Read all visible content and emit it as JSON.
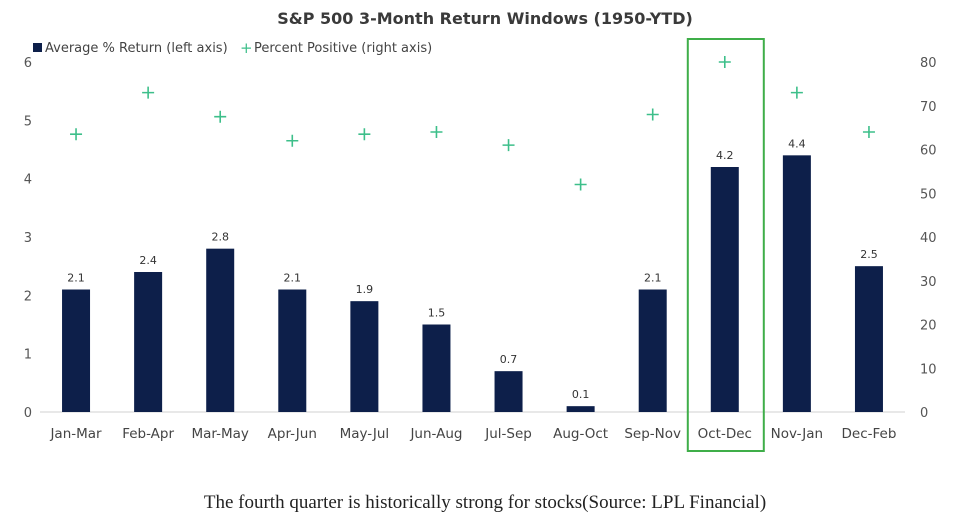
{
  "chart_data": {
    "type": "bar",
    "title": "S&P 500 3-Month Return Windows (1950-YTD)",
    "categories": [
      "Jan-Mar",
      "Feb-Apr",
      "Mar-May",
      "Apr-Jun",
      "May-Jul",
      "Jun-Aug",
      "Jul-Sep",
      "Aug-Oct",
      "Sep-Nov",
      "Oct-Dec",
      "Nov-Jan",
      "Dec-Feb"
    ],
    "series": [
      {
        "name": "Average % Return (left axis)",
        "type": "bar",
        "axis": "left",
        "color": "#0d1f4a",
        "values": [
          2.1,
          2.4,
          2.8,
          2.1,
          1.9,
          1.5,
          0.7,
          0.1,
          2.1,
          4.2,
          4.4,
          2.5
        ],
        "labels": [
          "2.1",
          "2.4",
          "2.8",
          "2.1",
          "1.9",
          "1.5",
          "0.7",
          "0.1",
          "2.1",
          "4.2",
          "4.4",
          "2.5"
        ]
      },
      {
        "name": "Percent Positive (right axis)",
        "type": "scatter",
        "marker": "+",
        "axis": "right",
        "color": "#3dbf8a",
        "values": [
          63.5,
          73,
          67.5,
          62,
          63.5,
          64,
          61,
          52,
          68,
          80,
          73,
          64
        ]
      }
    ],
    "left_axis": {
      "min": 0,
      "max": 6,
      "ticks": [
        "0",
        "1",
        "2",
        "3",
        "4",
        "5",
        "6"
      ]
    },
    "right_axis": {
      "min": 0,
      "max": 80,
      "ticks": [
        "0",
        "10",
        "20",
        "30",
        "40",
        "50",
        "60",
        "70",
        "80"
      ]
    },
    "highlight": {
      "category": "Oct-Dec",
      "color": "#3fae49"
    },
    "xlabel": "",
    "ylabel": ""
  },
  "caption": "The fourth quarter is historically strong for stocks(Source: LPL Financial)"
}
